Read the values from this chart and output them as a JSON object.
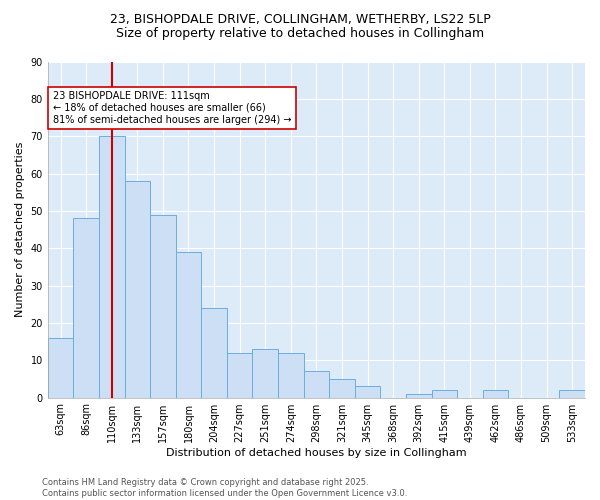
{
  "title_line1": "23, BISHOPDALE DRIVE, COLLINGHAM, WETHERBY, LS22 5LP",
  "title_line2": "Size of property relative to detached houses in Collingham",
  "xlabel": "Distribution of detached houses by size in Collingham",
  "ylabel": "Number of detached properties",
  "bar_labels": [
    "63sqm",
    "86sqm",
    "110sqm",
    "133sqm",
    "157sqm",
    "180sqm",
    "204sqm",
    "227sqm",
    "251sqm",
    "274sqm",
    "298sqm",
    "321sqm",
    "345sqm",
    "368sqm",
    "392sqm",
    "415sqm",
    "439sqm",
    "462sqm",
    "486sqm",
    "509sqm",
    "533sqm"
  ],
  "bar_values": [
    16,
    48,
    70,
    58,
    49,
    39,
    24,
    12,
    13,
    12,
    7,
    5,
    3,
    0,
    1,
    2,
    0,
    2,
    0,
    0,
    2
  ],
  "bar_color": "#ccdff5",
  "bar_edge_color": "#6aaee0",
  "vline_x_index": 2,
  "vline_color": "#cc0000",
  "annotation_text": "23 BISHOPDALE DRIVE: 111sqm\n← 18% of detached houses are smaller (66)\n81% of semi-detached houses are larger (294) →",
  "annotation_box_facecolor": "#ffffff",
  "annotation_box_edgecolor": "#cc0000",
  "ylim": [
    0,
    90
  ],
  "yticks": [
    0,
    10,
    20,
    30,
    40,
    50,
    60,
    70,
    80,
    90
  ],
  "bg_color": "#ddeaf8",
  "grid_color": "#ffffff",
  "footer_text": "Contains HM Land Registry data © Crown copyright and database right 2025.\nContains public sector information licensed under the Open Government Licence v3.0.",
  "title1_fontsize": 9,
  "title2_fontsize": 9,
  "axis_label_fontsize": 8,
  "tick_fontsize": 7,
  "annotation_fontsize": 7,
  "footer_fontsize": 6
}
